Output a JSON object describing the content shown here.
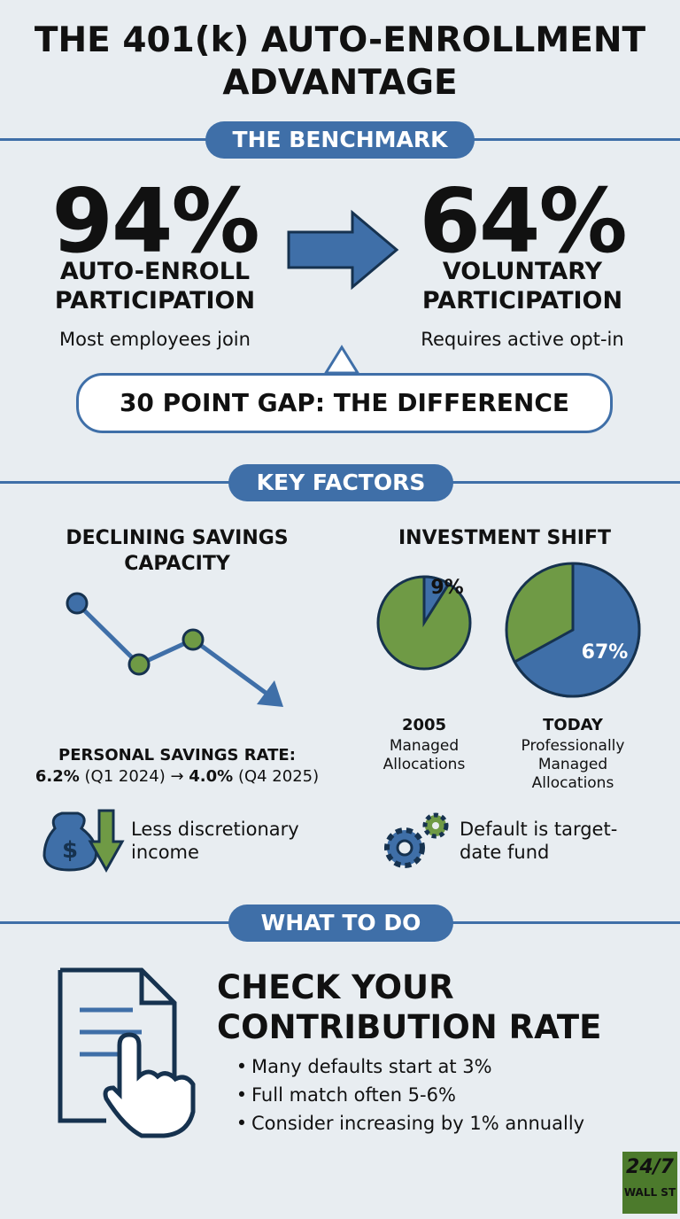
{
  "header": {
    "title": "THE 401(k) AUTO-ENROLLMENT ADVANTAGE"
  },
  "benchmark": {
    "heading": "THE BENCHMARK",
    "left": {
      "stat": "94%",
      "label": "AUTO-ENROLL PARTICIPATION",
      "note": "Most employees join"
    },
    "right": {
      "stat": "64%",
      "label": "VOLUNTARY PARTICIPATION",
      "note": "Requires active opt-in"
    },
    "gap": "30 POINT GAP: THE DIFFERENCE"
  },
  "factors": {
    "heading": "KEY FACTORS",
    "savings": {
      "title": "DECLINING SAVINGS CAPACITY",
      "rate_label": "PERSONAL SAVINGS RATE:",
      "rate_start": "6.2%",
      "start_period": "(Q1 2024)",
      "arrow": "→",
      "rate_end": "4.0%",
      "end_period": "(Q4 2025)",
      "note": "Less discretionary income"
    },
    "investment": {
      "title": "INVESTMENT SHIFT",
      "pies": [
        {
          "value": 9,
          "value_label": "9%",
          "year": "2005",
          "caption": "Managed Allocations"
        },
        {
          "value": 67,
          "value_label": "67%",
          "year": "TODAY",
          "caption": "Professionally Managed Allocations"
        }
      ],
      "note": "Default is target-date fund"
    }
  },
  "action": {
    "heading": "WHAT TO DO",
    "title": "CHECK YOUR CONTRIBUTION RATE",
    "bullets": [
      "Many defaults start at 3%",
      "Full match often 5-6%",
      "Consider increasing by 1% annually"
    ]
  },
  "logo": {
    "top": "24/7",
    "bottom": "WALL ST"
  }
}
